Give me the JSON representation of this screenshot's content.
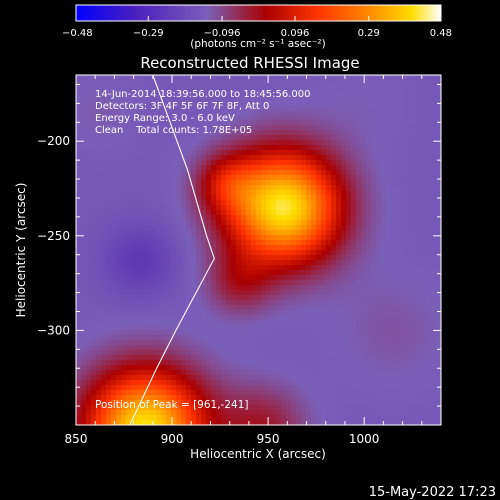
{
  "colorbar": {
    "ticks": [
      -0.48,
      -0.29,
      -0.096,
      0.096,
      0.29,
      0.48
    ],
    "tick_labels": [
      "-0.48",
      "-0.29",
      "-0.096",
      "0.096",
      "0.29",
      "0.48"
    ],
    "units_label": "(photons cm⁻² s⁻¹ asec⁻²)",
    "range": [
      -0.48,
      0.48
    ]
  },
  "info": {
    "line1": "14-Jun-2014 18:39:56.000 to 18:45:56.000",
    "line2": "Detectors: 3F 4F 5F 6F 7F 8F, Att 0",
    "line3": "Energy Range: 3.0 - 6.0 keV",
    "line4": "Clean    Total counts: 1.78E+05"
  },
  "footer_date": "15-May-2022 17:23",
  "chart_data": {
    "type": "heatmap",
    "title": "Reconstructed RHESSI Image",
    "xlabel": "Heliocentric X (arcsec)",
    "ylabel": "Heliocentric Y (arcsec)",
    "xlim": [
      850,
      1040
    ],
    "ylim": [
      -350,
      -165
    ],
    "xticks": [
      850,
      900,
      950,
      1000
    ],
    "yticks": [
      -200,
      -250,
      -300
    ],
    "colorscale": [
      "#0000ff",
      "#5020b0",
      "#7a5fb8",
      "#aa0000",
      "#ff3300",
      "#ff8800",
      "#ffdd00",
      "#ffffff"
    ],
    "peak_annotation": "Position of Peak = [961,-241]",
    "peak": [
      961,
      -241
    ],
    "sources": [
      {
        "x": 958,
        "y": -235,
        "sigma": 21,
        "amp": 0.58
      },
      {
        "x": 928,
        "y": -222,
        "sigma": 11,
        "amp": 0.15
      },
      {
        "x": 935,
        "y": -275,
        "sigma": 12,
        "amp": 0.12
      },
      {
        "x": 886,
        "y": -352,
        "sigma": 22,
        "amp": 0.57
      },
      {
        "x": 947,
        "y": -352,
        "sigma": 16,
        "amp": 0.14
      },
      {
        "x": 883,
        "y": -263,
        "sigma": 13,
        "amp": -0.1
      },
      {
        "x": 1015,
        "y": -300,
        "sigma": 22,
        "amp": 0.04
      },
      {
        "x": 862,
        "y": -185,
        "sigma": 14,
        "amp": 0.03
      },
      {
        "x": 1000,
        "y": -180,
        "sigma": 18,
        "amp": 0.02
      }
    ],
    "limb": [
      [
        890,
        -165
      ],
      [
        908,
        -215
      ],
      [
        918,
        -250
      ],
      [
        922,
        -262
      ],
      [
        902,
        -300
      ],
      [
        892,
        -320
      ],
      [
        878,
        -350
      ]
    ]
  }
}
